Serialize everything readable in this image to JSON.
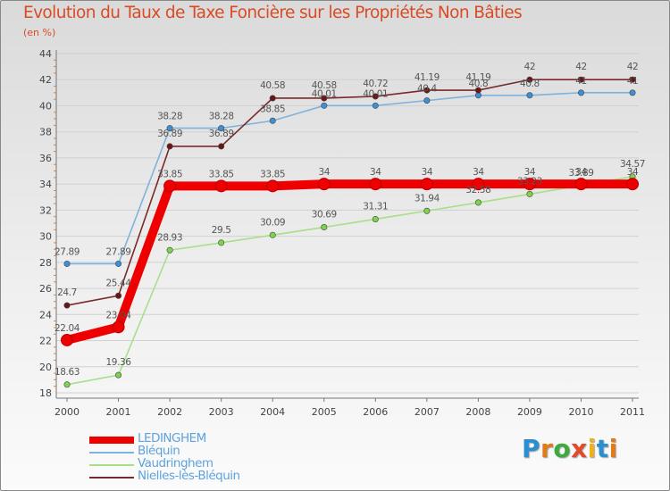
{
  "chart_data": {
    "type": "line",
    "title": "Evolution du Taux de Taxe Foncière sur les Propriétés Non Bâties",
    "ylabel": "(en %)",
    "xlabel": "",
    "x": [
      "2000",
      "2001",
      "2002",
      "2003",
      "2004",
      "2005",
      "2006",
      "2007",
      "2008",
      "2009",
      "2010",
      "2011"
    ],
    "ylim": [
      18,
      44
    ],
    "yticks": [
      "18",
      "20",
      "22",
      "24",
      "26",
      "28",
      "30",
      "32",
      "34",
      "36",
      "38",
      "40",
      "42",
      "44"
    ],
    "grid": "horizontal",
    "legend_position": "bottom-left",
    "series": [
      {
        "name": "LEDINGHEM",
        "color": "#ee0000",
        "values": [
          22.04,
          23.04,
          33.85,
          33.85,
          33.85,
          34,
          34,
          34,
          34,
          34,
          34,
          34
        ],
        "labels": [
          "22.04",
          "23.04",
          "33.85",
          "33.85",
          "33.85",
          "34",
          "34",
          "34",
          "34",
          "34",
          "34",
          "34"
        ]
      },
      {
        "name": "Bléquin",
        "color": "#7fb2dd",
        "values": [
          27.89,
          27.89,
          38.28,
          38.28,
          38.85,
          40.01,
          40.01,
          40.4,
          40.8,
          40.8,
          41,
          41
        ],
        "labels": [
          "27.89",
          "27.89",
          "38.28",
          "38.28",
          "38.85",
          "40.01",
          "40.01",
          "40.4",
          "40.8",
          "40.8",
          "41",
          "41"
        ]
      },
      {
        "name": "Vaudringhem",
        "color": "#a8df88",
        "values": [
          18.63,
          19.36,
          28.93,
          29.5,
          30.09,
          30.69,
          31.31,
          31.94,
          32.58,
          33.23,
          33.89,
          34.57
        ],
        "labels": [
          "18.63",
          "19.36",
          "28.93",
          "29.5",
          "30.09",
          "30.69",
          "31.31",
          "31.94",
          "32.58",
          "33.23",
          "33.89",
          "34.57"
        ]
      },
      {
        "name": "Nielles-lès-Bléquin",
        "color": "#7a2a2a",
        "values": [
          24.7,
          25.44,
          36.89,
          36.89,
          40.58,
          40.58,
          40.72,
          41.19,
          41.19,
          42,
          42,
          42
        ],
        "labels": [
          "24.7",
          "25.44",
          "36.89",
          "36.89",
          "40.58",
          "40.58",
          "40.72",
          "41.19",
          "41.19",
          "42",
          "42",
          "42"
        ]
      }
    ]
  },
  "logo": {
    "text": "Proxiti",
    "letters": [
      "P",
      "r",
      "o",
      "x",
      "i",
      "t",
      "i"
    ],
    "colors": [
      "#2a8fd0",
      "#e27a16",
      "#3cab3b",
      "#e24a2a",
      "#f0b21a",
      "#2a8fd0",
      "#e27a16"
    ]
  }
}
